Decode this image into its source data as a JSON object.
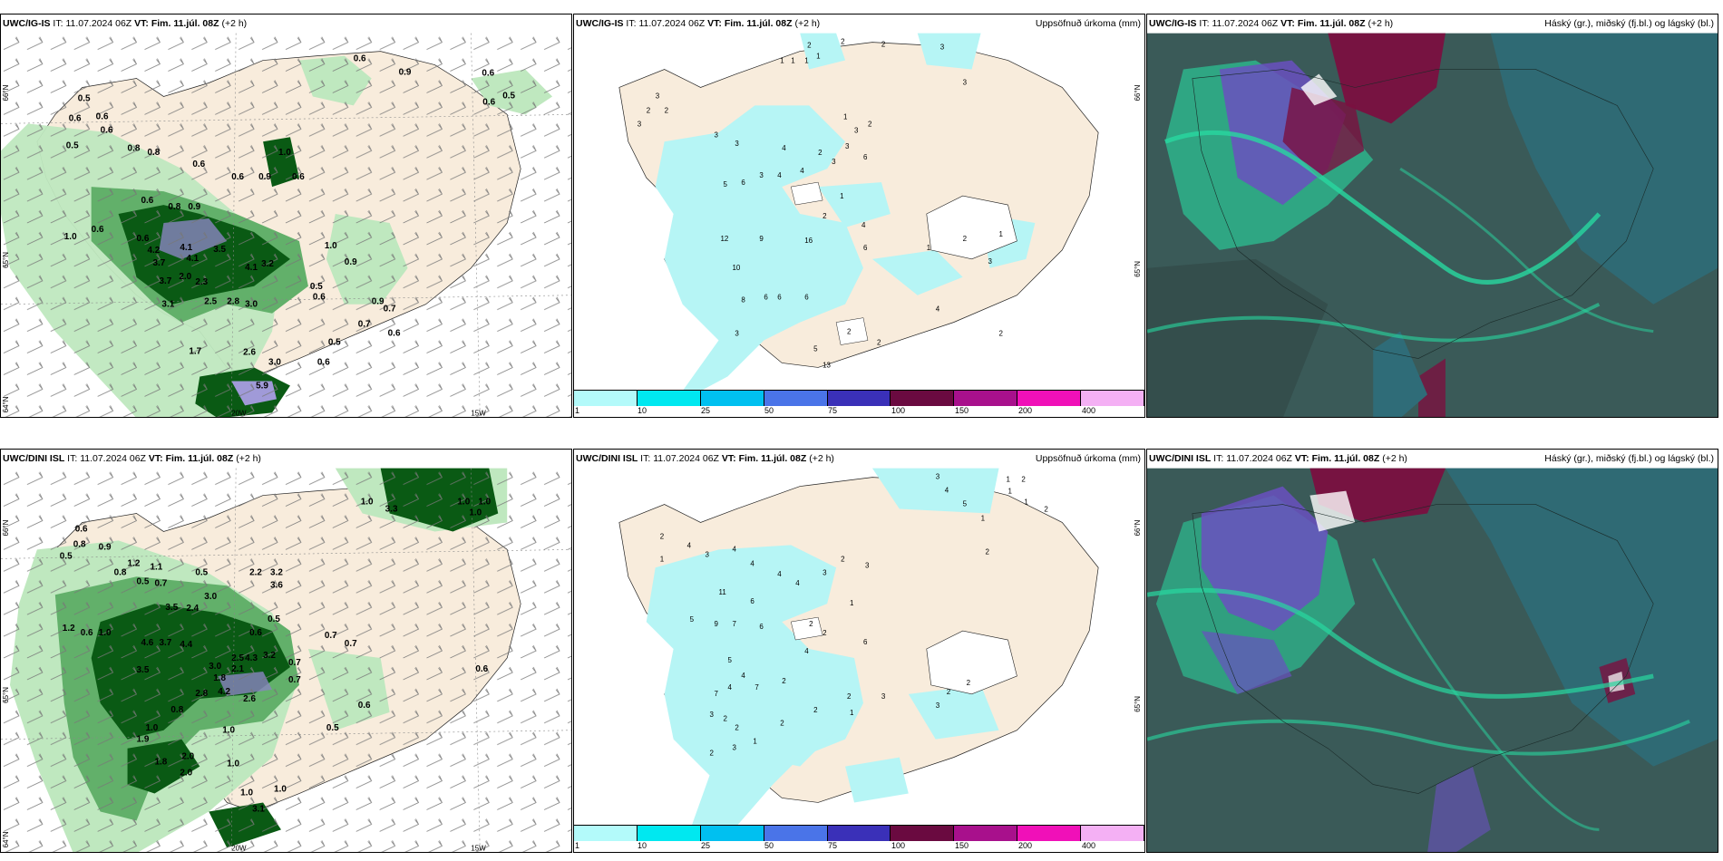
{
  "panels": {
    "top_left": {
      "model": "UWC/IG-IS",
      "it_label": "IT:",
      "it": "11.07.2024 06Z",
      "vt_label": "VT:",
      "vt": "Fim. 11.júl. 08Z",
      "lead": "(+2 h)",
      "values": [
        "0.5",
        "0.6",
        "0.6",
        "0.6",
        "0.5",
        "0.8",
        "0.8",
        "0.6",
        "0.6",
        "0.9",
        "0.6",
        "1.0",
        "0.9",
        "0.6",
        "0.8",
        "0.6",
        "1.0",
        "0.6",
        "4.1",
        "4.2",
        "3.7",
        "4.1",
        "3.5",
        "4.1",
        "3.2",
        "2.0",
        "2.3",
        "3.7",
        "2.5",
        "2.8",
        "3.0",
        "3.1",
        "1.7",
        "2.6",
        "3.0",
        "5.9",
        "0.9",
        "0.6",
        "0.9",
        "0.7",
        "0.5",
        "0.6",
        "0.5",
        "0.6",
        "0.9",
        "0.6",
        "0.6",
        "0.5",
        "0.6",
        "0.7",
        "1.0"
      ],
      "axis_lat": [
        "66°N",
        "65°N",
        "64°N"
      ],
      "axis_lon": [
        "20W",
        "15W"
      ]
    },
    "top_mid": {
      "model": "UWC/IG-IS",
      "it_label": "IT:",
      "it": "11.07.2024 06Z",
      "vt_label": "VT:",
      "vt": "Fim. 11.júl. 08Z",
      "lead": "(+2 h)",
      "right": "Uppsöfnuð úrkoma (mm)",
      "values": [
        "2",
        "2",
        "2",
        "3",
        "1",
        "1",
        "1",
        "1",
        "3",
        "3",
        "2",
        "2",
        "3",
        "3",
        "3",
        "1",
        "3",
        "2",
        "6",
        "3",
        "4",
        "2",
        "3",
        "4",
        "4",
        "3",
        "5",
        "6",
        "1",
        "9",
        "12",
        "2",
        "4",
        "16",
        "10",
        "8",
        "6",
        "6",
        "6",
        "3",
        "2",
        "1",
        "3",
        "4",
        "2",
        "5",
        "13",
        "2",
        "2",
        "1",
        "6"
      ],
      "axis_lat": [
        "66°N",
        "65°N"
      ]
    },
    "top_right": {
      "model": "UWC/IG-IS",
      "it_label": "IT:",
      "it": "11.07.2024 06Z",
      "vt_label": "VT:",
      "vt": "Fim. 11.júl. 08Z",
      "lead": "(+2 h)",
      "right": "Háský (gr.), miðský (fj.bl.) og lágský (bl.)"
    },
    "bottom_left": {
      "model": "UWC/DINI ISL",
      "it_label": "IT:",
      "it": "11.07.2024 06Z",
      "vt_label": "VT:",
      "vt": "Fim. 11.júl. 08Z",
      "lead": "(+2 h)",
      "values": [
        "1.0",
        "3.3",
        "1.0",
        "1.0",
        "1.0",
        "0.6",
        "0.8",
        "0.9",
        "0.5",
        "1.2",
        "0.8",
        "0.5",
        "0.7",
        "1.1",
        "0.5",
        "3.5",
        "3.0",
        "2.4",
        "2.2",
        "3.2",
        "3.6",
        "0.5",
        "1.0",
        "0.6",
        "4.6",
        "3.7",
        "4.4",
        "0.6",
        "2.5",
        "3.2",
        "4.3",
        "3.0",
        "2.1",
        "1.8",
        "0.7",
        "0.7",
        "0.7",
        "1.2",
        "2.8",
        "3.5",
        "4.2",
        "2.6",
        "0.7",
        "0.8",
        "1.0",
        "0.6",
        "0.5",
        "1.0",
        "1.9",
        "2.0",
        "1.8",
        "2.0",
        "1.0",
        "1.0",
        "3.1",
        "1.0",
        "0.6"
      ],
      "axis_lat": [
        "66°N",
        "65°N",
        "64°N"
      ],
      "axis_lon": [
        "20W",
        "15W"
      ]
    },
    "bottom_mid": {
      "model": "UWC/DINI ISL",
      "it_label": "IT:",
      "it": "11.07.2024 06Z",
      "vt_label": "VT:",
      "vt": "Fim. 11.júl. 08Z",
      "lead": "(+2 h)",
      "right": "Uppsöfnuð úrkoma (mm)",
      "values": [
        "3",
        "1",
        "2",
        "1",
        "4",
        "5",
        "1",
        "2",
        "1",
        "2",
        "2",
        "4",
        "1",
        "3",
        "4",
        "4",
        "4",
        "4",
        "3",
        "2",
        "3",
        "11",
        "6",
        "5",
        "9",
        "7",
        "6",
        "2",
        "1",
        "2",
        "4",
        "6",
        "5",
        "4",
        "4",
        "7",
        "7",
        "2",
        "3",
        "2",
        "2",
        "1",
        "2",
        "2",
        "3",
        "2",
        "2",
        "3",
        "2",
        "3",
        "2",
        "1"
      ],
      "axis_lat": [
        "66°N",
        "65°N"
      ]
    },
    "bottom_right": {
      "model": "UWC/DINI ISL",
      "it_label": "IT:",
      "it": "11.07.2024 06Z",
      "vt_label": "VT:",
      "vt": "Fim. 11.júl. 08Z",
      "lead": "(+2 h)",
      "right": "Háský (gr.), miðský (fj.bl.) og lágský (bl.)"
    }
  },
  "colorbar": {
    "ticks": [
      "1",
      "10",
      "25",
      "50",
      "75",
      "100",
      "150",
      "200",
      "400"
    ],
    "colors": [
      "#b3fafa",
      "#00e8f0",
      "#00c0f0",
      "#4a74e8",
      "#3a30b8",
      "#6a0a40",
      "#a8108c",
      "#f010b8",
      "#f4b0f4"
    ]
  },
  "colors": {
    "land": "#f8ecdc",
    "precip_light": "#b6f5f5",
    "wind_light": "#bfe8bf",
    "wind_mid": "#62b06a",
    "wind_dark": "#0a5a14",
    "cloud_base": "#3a5a58",
    "cloud_teal": "#2f6c78",
    "cloud_green": "#28d8a0",
    "cloud_purple": "#6a50c0",
    "cloud_maroon": "#7a1040"
  }
}
